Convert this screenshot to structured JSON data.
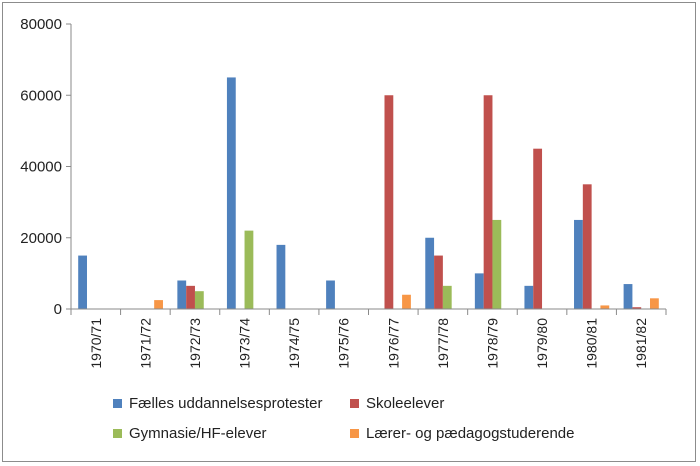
{
  "chart_data": {
    "type": "bar",
    "title": "",
    "xlabel": "",
    "ylabel": "",
    "ylim": [
      0,
      80000
    ],
    "yticks": [
      0,
      20000,
      40000,
      60000,
      80000
    ],
    "grid": false,
    "legend_position": "bottom",
    "categories": [
      "1970/71",
      "1971/72",
      "1972/73",
      "1973/74",
      "1974/75",
      "1975/76",
      "1976/77",
      "1977/78",
      "1978/79",
      "1979/80",
      "1980/81",
      "1981/82"
    ],
    "series": [
      {
        "name": "Fælles uddannelsesprotester",
        "color": "#4F81BD",
        "values": [
          15000,
          0,
          8000,
          65000,
          18000,
          8000,
          0,
          20000,
          10000,
          6500,
          25000,
          7000
        ]
      },
      {
        "name": "Skoleelever",
        "color": "#C0504D",
        "values": [
          0,
          0,
          6500,
          0,
          0,
          0,
          60000,
          15000,
          60000,
          45000,
          35000,
          500
        ]
      },
      {
        "name": "Gymnasie/HF-elever",
        "color": "#9BBB59",
        "values": [
          0,
          0,
          5000,
          22000,
          0,
          0,
          0,
          6500,
          25000,
          0,
          0,
          0
        ]
      },
      {
        "name": "Lærer- og pædagogstuderende",
        "color": "#F79646",
        "values": [
          0,
          2500,
          0,
          0,
          0,
          0,
          4000,
          0,
          0,
          0,
          1000,
          3000
        ]
      }
    ]
  }
}
